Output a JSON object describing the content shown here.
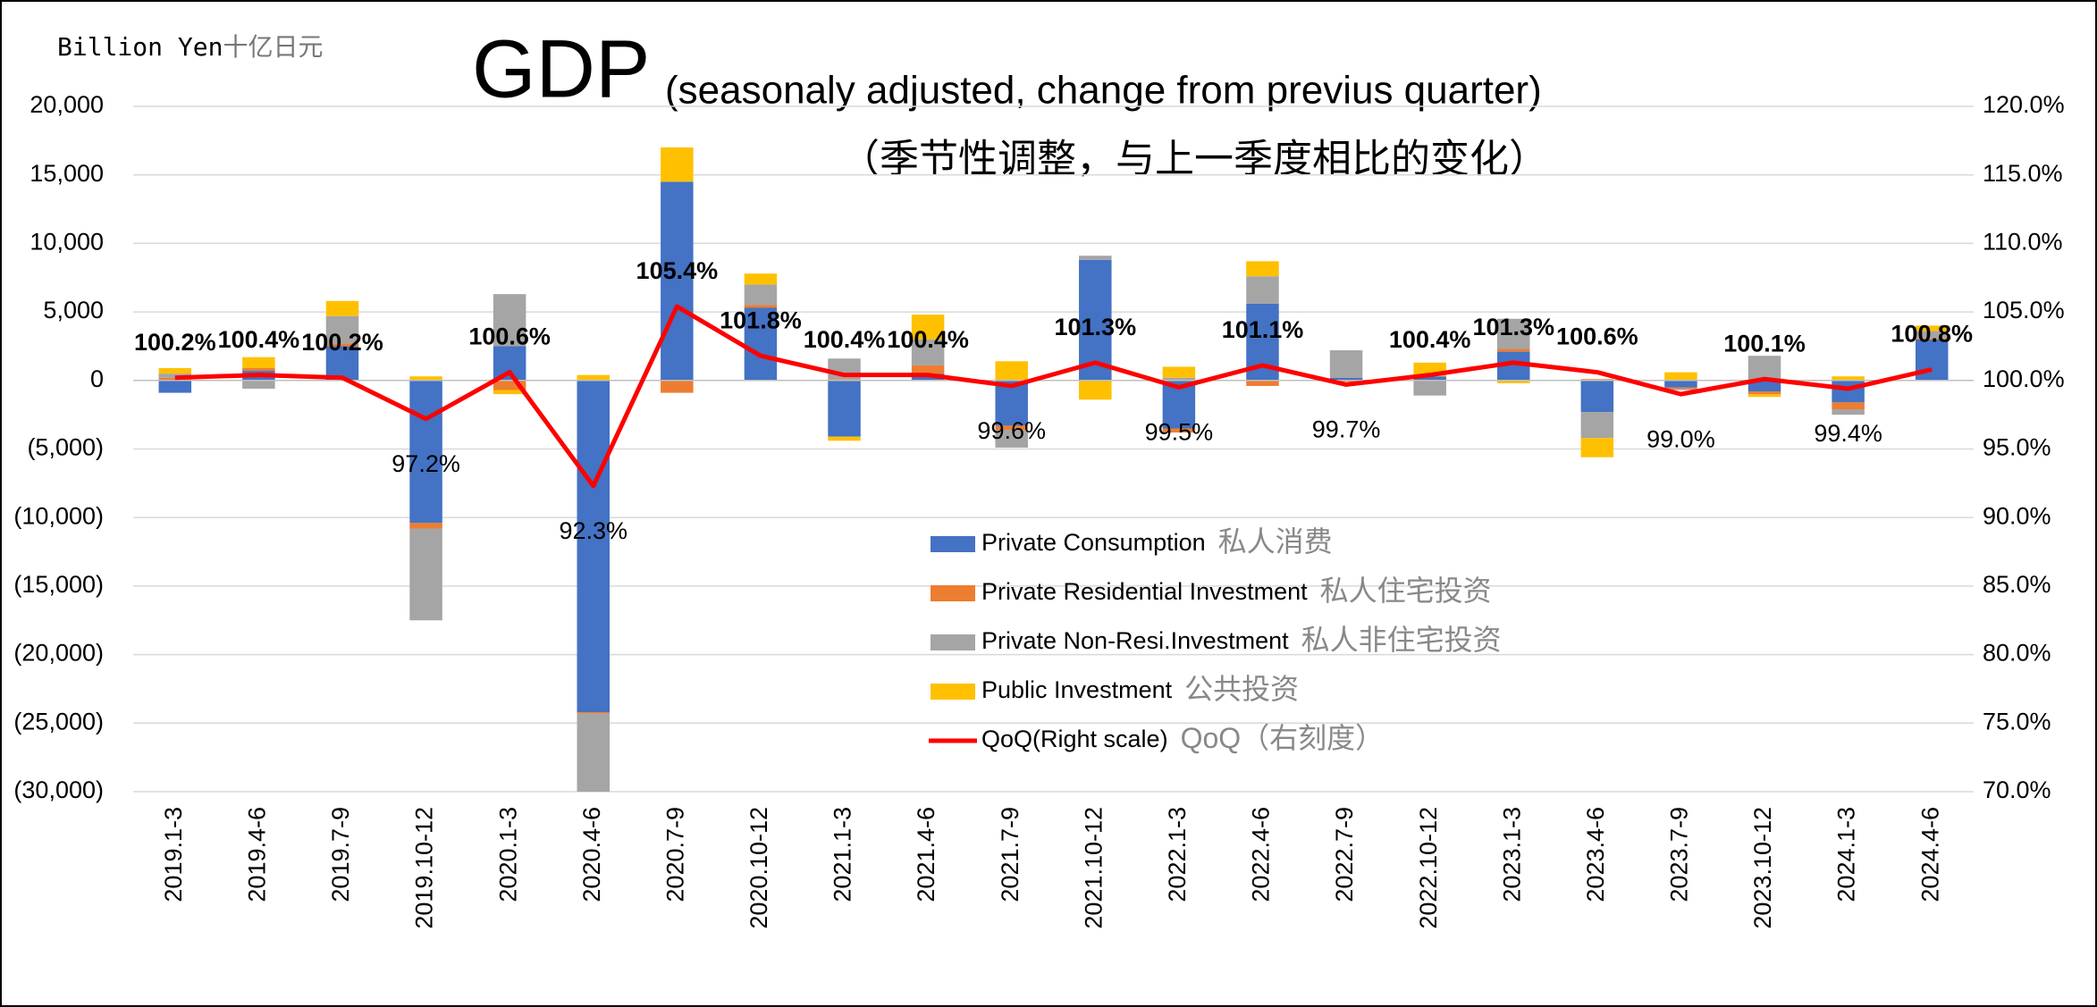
{
  "chart_data": {
    "type": "stacked_bar_line",
    "title": "GDP",
    "subtitle": "(seasonaly adjusted, change from previus quarter)",
    "subtitle_zh": "（季节性调整，与上一季度相比的变化）",
    "y_axis_label": "Billion Yen",
    "y_axis_label_zh": "十亿日元",
    "categories": [
      "2019.1-3",
      "2019.4-6",
      "2019.7-9",
      "2019.10-12",
      "2020.1-3",
      "2020.4-6",
      "2020.7-9",
      "2020.10-12",
      "2021.1-3",
      "2021.4-6",
      "2021.7-9",
      "2021.10-12",
      "2022.1-3",
      "2022.4-6",
      "2022.7-9",
      "2022.10-12",
      "2023.1-3",
      "2023.4-6",
      "2023.7-9",
      "2023.10-12",
      "2024.1-3",
      "2024.4-6"
    ],
    "series": [
      {
        "name": "Private Consumption",
        "name_zh": "私人消费",
        "color": "#4472c4",
        "values": [
          -900,
          700,
          2500,
          -10400,
          2500,
          -24200,
          14500,
          5300,
          -4100,
          500,
          -3300,
          8800,
          -3500,
          5600,
          200,
          300,
          2100,
          -2300,
          -500,
          -800,
          -1600,
          3000
        ]
      },
      {
        "name": "Private Residential Investment",
        "name_zh": "私人住宅投资",
        "color": "#ed7d31",
        "values": [
          200,
          200,
          200,
          -400,
          -700,
          -100,
          -900,
          200,
          100,
          600,
          -300,
          0,
          -300,
          -400,
          -100,
          0,
          200,
          100,
          -100,
          -200,
          -500,
          100
        ]
      },
      {
        "name": "Private Non-Resi.Investment",
        "name_zh": "私人非住宅投资",
        "color": "#a5a5a5",
        "values": [
          300,
          -600,
          2000,
          -6700,
          3800,
          -5700,
          0,
          1500,
          1500,
          1900,
          -1300,
          300,
          200,
          2000,
          2000,
          -1100,
          2200,
          -1900,
          -100,
          1800,
          -400,
          500
        ]
      },
      {
        "name": "Public Investment",
        "name_zh": "公共投资",
        "color": "#ffc000",
        "values": [
          400,
          800,
          1100,
          300,
          -300,
          400,
          2500,
          800,
          -300,
          1800,
          1400,
          -1400,
          800,
          1100,
          0,
          1000,
          -200,
          -1400,
          600,
          -200,
          300,
          400
        ]
      },
      {
        "name": "QoQ(Right scale)",
        "name_zh": "QoQ（右刻度）",
        "color": "#ff0000",
        "axis": "y2",
        "values": [
          100.2,
          100.4,
          100.2,
          97.2,
          100.6,
          92.3,
          105.4,
          101.8,
          100.4,
          100.4,
          99.6,
          101.3,
          99.5,
          101.1,
          99.7,
          100.4,
          101.3,
          100.6,
          99.0,
          100.1,
          99.4,
          100.8
        ],
        "value_labels": [
          "100.2%",
          "100.4%",
          "100.2%",
          "97.2%",
          "100.6%",
          "92.3%",
          "105.4%",
          "101.8%",
          "100.4%",
          "100.4%",
          "99.6%",
          "101.3%",
          "99.5%",
          "101.1%",
          "99.7%",
          "100.4%",
          "101.3%",
          "100.6%",
          "99.0%",
          "100.1%",
          "99.4%",
          "100.8%"
        ]
      }
    ],
    "ylim": [
      -30000,
      20000
    ],
    "yticks": [
      {
        "value": -30000,
        "label": "(30,000)"
      },
      {
        "value": -25000,
        "label": "(25,000)"
      },
      {
        "value": -20000,
        "label": "(20,000)"
      },
      {
        "value": -15000,
        "label": "(15,000)"
      },
      {
        "value": -10000,
        "label": "(10,000)"
      },
      {
        "value": -5000,
        "label": "(5,000)"
      },
      0,
      {
        "value": 5000,
        "label": "5,000"
      },
      {
        "value": 10000,
        "label": "10,000"
      },
      {
        "value": 15000,
        "label": "15,000"
      },
      {
        "value": 20000,
        "label": "20,000"
      }
    ],
    "y2lim": [
      70,
      120
    ],
    "y2ticks": [
      {
        "value": 70,
        "label": "70.0%"
      },
      {
        "value": 75,
        "label": "75.0%"
      },
      {
        "value": 80,
        "label": "80.0%"
      },
      {
        "value": 85,
        "label": "85.0%"
      },
      {
        "value": 90,
        "label": "90.0%"
      },
      {
        "value": 95,
        "label": "95.0%"
      },
      {
        "value": 100,
        "label": "100.0%"
      },
      {
        "value": 105,
        "label": "105.0%"
      },
      {
        "value": 110,
        "label": "110.0%"
      },
      {
        "value": 115,
        "label": "115.0%"
      },
      {
        "value": 120,
        "label": "120.0%"
      }
    ],
    "grid": true
  }
}
